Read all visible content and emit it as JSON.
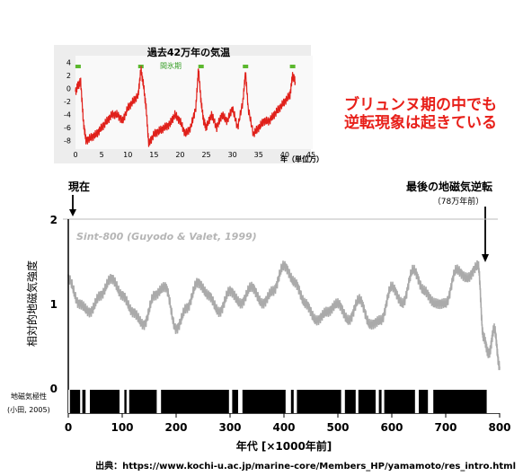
{
  "inset": {
    "title": "過去42万年の気温",
    "interglacial_label": "間氷期",
    "x_unit_label": "年（単位万）",
    "yticks": [
      "4",
      "2",
      "0",
      "-2",
      "-4",
      "-6",
      "-8"
    ],
    "xticks": [
      "0",
      "5",
      "10",
      "15",
      "20",
      "25",
      "30",
      "35",
      "40",
      "45"
    ],
    "interglacial_marks": [
      0.5,
      12.5,
      24,
      32.5,
      41.5
    ]
  },
  "annotation": {
    "line1": "ブリュンヌ期の中でも",
    "line2": "逆転現象は起きている",
    "color": "#e8201a"
  },
  "labels": {
    "present": "現在",
    "last_reversal": "最後の地磁気逆転",
    "last_reversal_date": "（78万年前）",
    "polarity_label_1": "地磁気極性",
    "polarity_label_2": "(小田, 2005)",
    "source": "出典：https://www.kochi-u.ac.jp/marine-core/Members_HP/yamamoto/res_intro.html"
  },
  "chart_data": [
    {
      "type": "line",
      "title": "過去42万年の気温",
      "xlabel": "年（単位万）",
      "ylabel": "",
      "xlim": [
        0,
        45
      ],
      "ylim": [
        -9,
        5
      ],
      "series": [
        {
          "color": "#e0201a",
          "x": [
            0,
            0.5,
            1,
            1.5,
            2,
            3,
            4,
            5,
            6,
            7,
            8,
            9,
            10,
            11,
            12,
            12.5,
            13,
            13.5,
            14,
            15,
            16,
            17,
            18,
            19,
            20,
            21,
            22,
            23,
            23.5,
            24,
            24.5,
            25,
            26,
            27,
            28,
            29,
            30,
            31,
            32,
            32.5,
            33,
            34,
            35,
            36,
            37,
            38,
            39,
            40,
            41,
            41.5,
            42
          ],
          "values": [
            -0.5,
            0.5,
            1,
            -5,
            -8,
            -7.5,
            -7,
            -6,
            -5,
            -4,
            -4,
            -5,
            -3,
            -2,
            -1,
            3,
            0.5,
            -3,
            -8.5,
            -7,
            -6.5,
            -6,
            -5.5,
            -4,
            -5,
            -7,
            -6,
            -3,
            3,
            -2,
            -5,
            -6,
            -4,
            -6,
            -4,
            -5,
            -3,
            -6,
            -2,
            2.5,
            -3,
            -7,
            -6,
            -5,
            -5,
            -4,
            -3,
            -2,
            -1,
            2,
            1
          ]
        }
      ]
    },
    {
      "type": "line",
      "title": "Sint-800 (Guyodo & Valet, 1999)",
      "xlabel": "年代 [×1000年前]",
      "ylabel": "相対的地磁気強度",
      "xlim": [
        0,
        800
      ],
      "ylim": [
        0,
        2
      ],
      "xticks": [
        "0",
        "100",
        "200",
        "300",
        "400",
        "500",
        "600",
        "700",
        "800"
      ],
      "yticks": [
        "0",
        "1",
        "2"
      ],
      "series": [
        {
          "color": "#aaaaaa",
          "x": [
            0,
            20,
            40,
            60,
            80,
            100,
            120,
            140,
            160,
            180,
            200,
            220,
            240,
            260,
            280,
            300,
            320,
            340,
            360,
            380,
            400,
            420,
            440,
            460,
            480,
            500,
            520,
            540,
            560,
            580,
            600,
            620,
            640,
            660,
            680,
            700,
            720,
            740,
            760,
            770,
            780,
            790,
            800
          ],
          "values": [
            1.3,
            1.0,
            0.9,
            1.1,
            1.3,
            1.1,
            0.9,
            0.75,
            1.1,
            1.2,
            0.7,
            0.95,
            1.25,
            1.1,
            0.9,
            1.15,
            1.0,
            1.2,
            1.0,
            1.15,
            1.45,
            1.25,
            1.0,
            0.8,
            0.9,
            1.0,
            0.8,
            1.05,
            0.75,
            0.8,
            1.2,
            1.0,
            1.4,
            1.15,
            1.0,
            1.0,
            1.4,
            1.3,
            1.45,
            0.6,
            0.4,
            0.7,
            0.25
          ]
        }
      ]
    },
    {
      "type": "bar",
      "title": "地磁気極性",
      "xlim": [
        0,
        800
      ],
      "normal_polarity_bands": [
        [
          3,
          22
        ],
        [
          26,
          32
        ],
        [
          40,
          95
        ],
        [
          104,
          108
        ],
        [
          113,
          164
        ],
        [
          172,
          298
        ],
        [
          304,
          315
        ],
        [
          323,
          403
        ],
        [
          413,
          418
        ],
        [
          424,
          506
        ],
        [
          513,
          533
        ],
        [
          538,
          570
        ],
        [
          576,
          581
        ],
        [
          586,
          643
        ],
        [
          650,
          667
        ],
        [
          677,
          776
        ]
      ]
    }
  ]
}
